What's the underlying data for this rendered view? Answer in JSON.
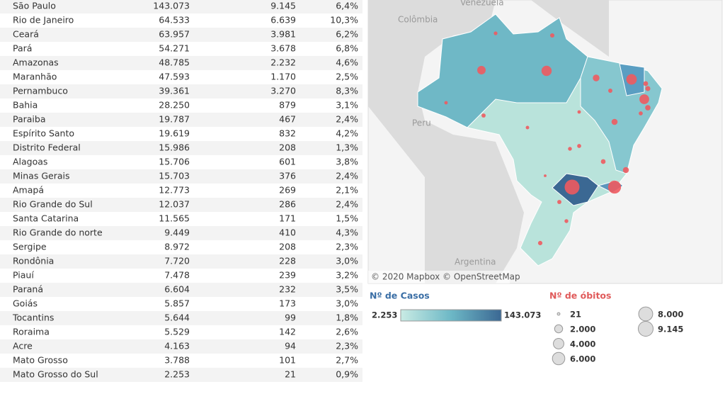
{
  "table": {
    "rows": [
      [
        "São Paulo",
        "143.073",
        {
          "value": 9145,
          "label": "9.145"
        },
        "6,4%"
      ],
      [
        "Rio de Janeiro",
        "64.533",
        {
          "value": 6639,
          "label": "6.639"
        },
        "10,3%"
      ],
      [
        "Ceará",
        "63.957",
        {
          "value": 3981,
          "label": "3.981"
        },
        "6,2%"
      ],
      [
        "Pará",
        "54.271",
        {
          "value": 3678,
          "label": "3.678"
        },
        "6,8%"
      ],
      [
        "Amazonas",
        "48.785",
        {
          "value": 2232,
          "label": "2.232"
        },
        "4,6%"
      ],
      [
        "Maranhão",
        "47.593",
        {
          "value": 1170,
          "label": "1.170"
        },
        "2,5%"
      ],
      [
        "Pernambuco",
        "39.361",
        {
          "value": 3270,
          "label": "3.270"
        },
        "8,3%"
      ],
      [
        "Bahia",
        "28.250",
        {
          "value": 879,
          "label": "879"
        },
        "3,1%"
      ],
      [
        "Paraiba",
        "19.787",
        {
          "value": 467,
          "label": "467"
        },
        "2,4%"
      ],
      [
        "Espírito Santo",
        "19.619",
        {
          "value": 832,
          "label": "832"
        },
        "4,2%"
      ],
      [
        "Distrito Federal",
        "15.986",
        {
          "value": 208,
          "label": "208"
        },
        "1,3%"
      ],
      [
        "Alagoas",
        "15.706",
        {
          "value": 601,
          "label": "601"
        },
        "3,8%"
      ],
      [
        "Minas Gerais",
        "15.703",
        {
          "value": 376,
          "label": "376"
        },
        "2,4%"
      ],
      [
        "Amapá",
        "12.773",
        {
          "value": 269,
          "label": "269"
        },
        "2,1%"
      ],
      [
        "Rio Grande do Sul",
        "12.037",
        {
          "value": 286,
          "label": "286"
        },
        "2,4%"
      ],
      [
        "Santa Catarina",
        "11.565",
        {
          "value": 171,
          "label": "171"
        },
        "1,5%"
      ],
      [
        "Rio Grande do norte",
        "9.449",
        {
          "value": 410,
          "label": "410"
        },
        "4,3%"
      ],
      [
        "Sergipe",
        "8.972",
        {
          "value": 208,
          "label": "208"
        },
        "2,3%"
      ],
      [
        "Rondônia",
        "7.720",
        {
          "value": 228,
          "label": "228"
        },
        "3,0%"
      ],
      [
        "Piauí",
        "7.478",
        {
          "value": 239,
          "label": "239"
        },
        "3,2%"
      ],
      [
        "Paraná",
        "6.604",
        {
          "value": 232,
          "label": "232"
        },
        "3,5%"
      ],
      [
        "Goiás",
        "5.857",
        {
          "value": 173,
          "label": "173"
        },
        "3,0%"
      ],
      [
        "Tocantins",
        "5.644",
        {
          "value": 99,
          "label": "99"
        },
        "1,8%"
      ],
      [
        "Roraima",
        "5.529",
        {
          "value": 142,
          "label": "142"
        },
        "2,6%"
      ],
      [
        "Acre",
        "4.163",
        {
          "value": 94,
          "label": "94"
        },
        "2,3%"
      ],
      [
        "Mato Grosso",
        "3.788",
        {
          "value": 101,
          "label": "101"
        },
        "2,7%"
      ],
      [
        "Mato Grosso do Sul",
        "2.253",
        {
          "value": 21,
          "label": "21"
        },
        "0,9%"
      ]
    ]
  },
  "map": {
    "labels": [
      "Venezuela",
      "Colômbia",
      "Peru",
      "Argentina"
    ],
    "attribution": "© 2020 Mapbox © OpenStreetMap"
  },
  "legend_cases": {
    "title": "Nº de Casos",
    "min": "2.253",
    "max": "143.073"
  },
  "legend_deaths": {
    "title": "Nº de óbitos",
    "items": [
      {
        "value": 21,
        "label": "21"
      },
      {
        "value": 2000,
        "label": "2.000"
      },
      {
        "value": 4000,
        "label": "4.000"
      },
      {
        "value": 6000,
        "label": "6.000"
      },
      {
        "value": 8000,
        "label": "8.000"
      },
      {
        "value": 9145,
        "label": "9.145"
      }
    ]
  }
}
